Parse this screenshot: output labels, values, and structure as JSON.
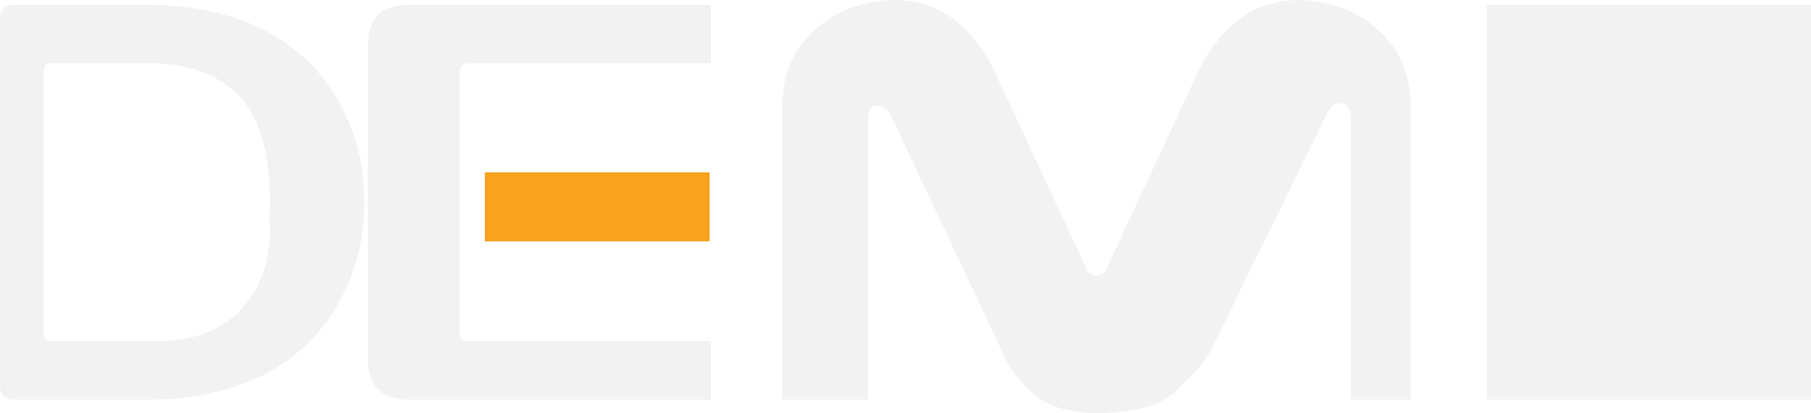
{
  "logo": {
    "wordmark": "DEMI",
    "letter_color": "#F2F2F2",
    "accent_color": "#F9A21E",
    "background_color": "#FFFFFF"
  }
}
